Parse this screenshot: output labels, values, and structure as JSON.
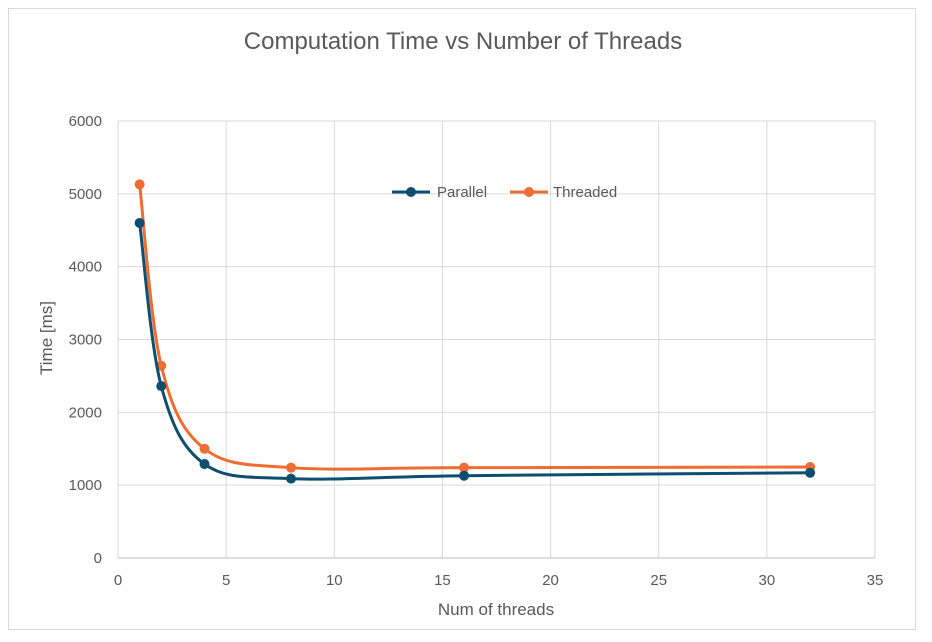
{
  "chart_data": {
    "type": "line",
    "title": "Computation Time vs Number of Threads",
    "xlabel": "Num of threads",
    "ylabel": "Time [ms]",
    "xlim": [
      0,
      35
    ],
    "ylim": [
      0,
      6000
    ],
    "x_ticks": [
      "0",
      "5",
      "10",
      "15",
      "20",
      "25",
      "30",
      "35"
    ],
    "y_ticks": [
      "0",
      "1000",
      "2000",
      "3000",
      "4000",
      "5000",
      "6000"
    ],
    "grid": true,
    "smooth": true,
    "legend_position": "top-center",
    "series": [
      {
        "name": "Parallel",
        "color": "#0e4f6f",
        "x": [
          1,
          2,
          4,
          8,
          16,
          32
        ],
        "y": [
          4600,
          2360,
          1290,
          1090,
          1130,
          1170
        ]
      },
      {
        "name": "Threaded",
        "color": "#ed6d32",
        "x": [
          1,
          2,
          4,
          8,
          16,
          32
        ],
        "y": [
          5130,
          2640,
          1500,
          1240,
          1240,
          1250
        ]
      }
    ]
  }
}
